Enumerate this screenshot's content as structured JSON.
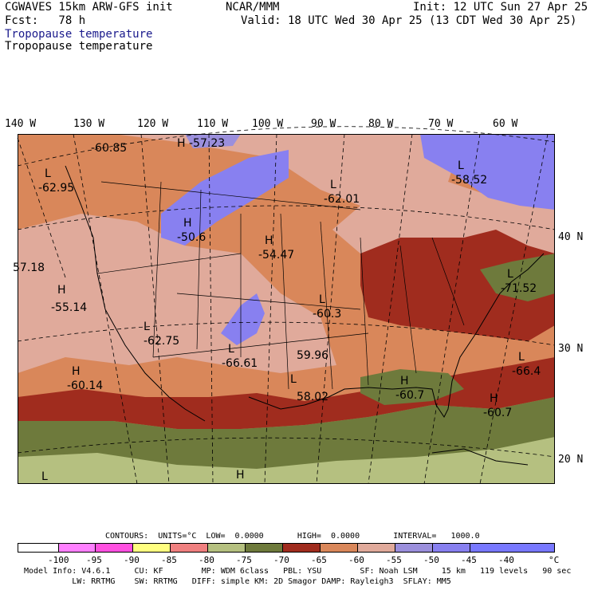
{
  "header": {
    "model": "CGWAVES 15km ARW-GFS init",
    "fcst": "Fcst:   78 h",
    "org": "NCAR/MMM",
    "init": "Init: 12 UTC Sun 27 Apr 25",
    "valid": "Valid: 18 UTC Wed 30 Apr 25 (13 CDT Wed 30 Apr 25)",
    "field_title_1": "Tropopause temperature",
    "field_title_2": "Tropopause temperature"
  },
  "colors": {
    "title_blue": "#1a1a8c",
    "c_lt_70_65": "#a02c1e",
    "c_65_60": "#d9875a",
    "c_60_55": "#e0aa9b",
    "c_55_50": "#9b8fdc",
    "c_50_45": "#8880f0",
    "c_75_70": "#6e7a3c",
    "c_80_75": "#b5c080",
    "c_85_80": "#f08080"
  },
  "longitude_labels": [
    "140 W",
    "130 W",
    "120 W",
    "110 W",
    "100 W",
    "90 W",
    "80 W",
    "70 W",
    "60 W"
  ],
  "latitude_labels": [
    "40 N",
    "30 N",
    "20 N"
  ],
  "map_labels": [
    {
      "type": "H",
      "value": "-57.23"
    },
    {
      "type": "",
      "value": "-60.85"
    },
    {
      "type": "L",
      "value": "-62.95"
    },
    {
      "type": "H",
      "value": "-50.6"
    },
    {
      "type": "H",
      "value": "-54.47"
    },
    {
      "type": "L",
      "value": "-62.01"
    },
    {
      "type": "L",
      "value": "-58.52"
    },
    {
      "type": "",
      "value": "57.18"
    },
    {
      "type": "H",
      "value": "-55.14"
    },
    {
      "type": "L",
      "value": "-62.75"
    },
    {
      "type": "L",
      "value": "-66.61"
    },
    {
      "type": "L",
      "value": "-60.3"
    },
    {
      "type": "",
      "value": "59.96"
    },
    {
      "type": "L",
      "value": "-71.52"
    },
    {
      "type": "L",
      "value": "-66.4"
    },
    {
      "type": "H",
      "value": "-60.14"
    },
    {
      "type": "H",
      "value": "-60.7"
    },
    {
      "type": "H",
      "value": "-60.7"
    },
    {
      "type": "L",
      "value": "58.02"
    },
    {
      "type": "L",
      "value": ""
    },
    {
      "type": "H",
      "value": ""
    }
  ],
  "contours": {
    "text": "CONTOURS:  UNITS=°C  LOW=  0.0000       HIGH=  0.0000       INTERVAL=   1000.0"
  },
  "legend": {
    "colors": [
      "#ffffff",
      "#ff80ff",
      "#ff50e0",
      "#ffff80",
      "#f08080",
      "#b5c080",
      "#6e7a3c",
      "#a02c1e",
      "#d9875a",
      "#e0aa9b",
      "#9b8fdc",
      "#8880f0",
      "#7878ff"
    ],
    "labels": [
      "-100",
      "-95",
      "-90",
      "-85",
      "-80",
      "-75",
      "-70",
      "-65",
      "-60",
      "-55",
      "-50",
      "-45",
      "-40"
    ],
    "unit": "°C"
  },
  "model_info": {
    "line1": "Model Info: V4.6.1     CU: KF        MP: WDM 6class   PBL: YSU        SF: Noah LSM     15 km   119 levels   90 sec",
    "line2": "          LW: RRTMG    SW: RRTMG   DIFF: simple KM: 2D Smagor DAMP: Rayleigh3  SFLAY: MM5"
  }
}
